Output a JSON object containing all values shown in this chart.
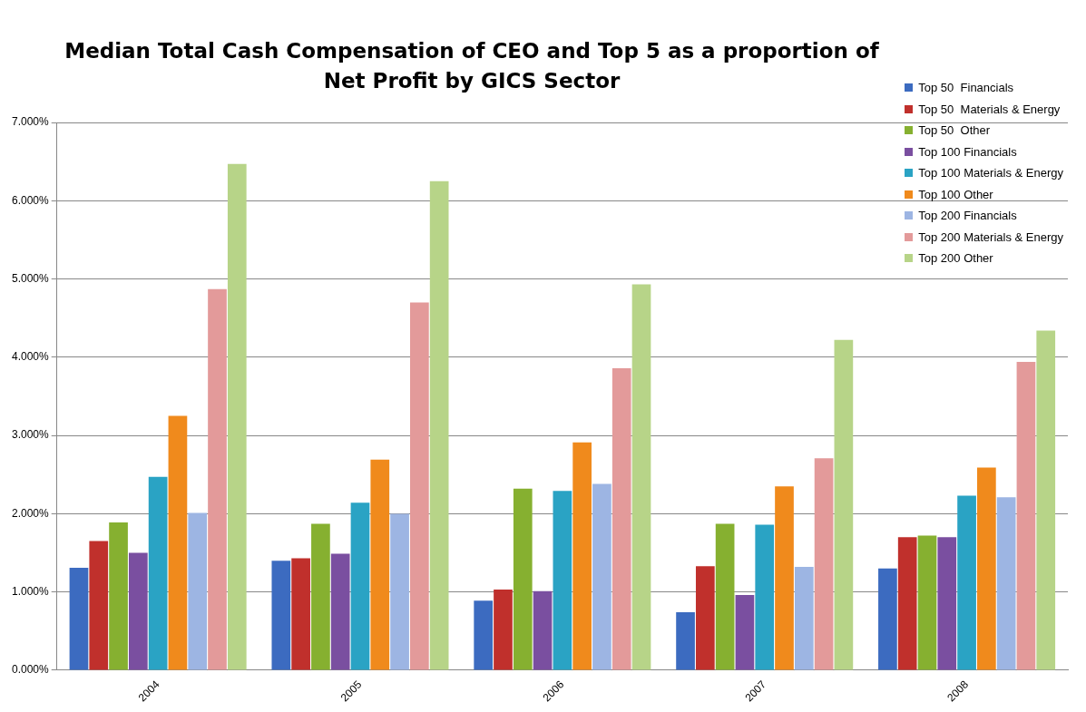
{
  "chart_data": {
    "type": "bar",
    "title": "Median Total Cash Compensation of CEO and Top 5 as a proportion of Net Profit by GICS Sector",
    "categories": [
      "2004",
      "2005",
      "2006",
      "2007",
      "2008"
    ],
    "series": [
      {
        "name": "Top 50  Financials",
        "color": "#3c6bc0",
        "values": [
          1.31,
          1.4,
          0.89,
          0.74,
          1.3
        ]
      },
      {
        "name": "Top 50  Materials & Energy",
        "color": "#c0302c",
        "values": [
          1.65,
          1.43,
          1.03,
          1.33,
          1.7
        ]
      },
      {
        "name": "Top 50  Other",
        "color": "#86b030",
        "values": [
          1.89,
          1.87,
          2.32,
          1.87,
          1.72
        ]
      },
      {
        "name": "Top 100 Financials",
        "color": "#7a4fa0",
        "values": [
          1.5,
          1.49,
          1.01,
          0.96,
          1.7
        ]
      },
      {
        "name": "Top 100 Materials & Energy",
        "color": "#2aa3c4",
        "values": [
          2.47,
          2.14,
          2.29,
          1.86,
          2.23
        ]
      },
      {
        "name": "Top 100 Other",
        "color": "#f08a1c",
        "values": [
          3.25,
          2.69,
          2.91,
          2.35,
          2.59
        ]
      },
      {
        "name": "Top 200 Financials",
        "color": "#9db5e3",
        "values": [
          2.01,
          2.0,
          2.38,
          1.32,
          2.21
        ]
      },
      {
        "name": "Top 200 Materials & Energy",
        "color": "#e39a9a",
        "values": [
          4.87,
          4.7,
          3.86,
          2.71,
          3.94
        ]
      },
      {
        "name": "Top 200 Other",
        "color": "#b7d488",
        "values": [
          6.47,
          6.25,
          4.93,
          4.22,
          4.34
        ]
      }
    ],
    "ylim": [
      0,
      7
    ],
    "yticks": [
      {
        "value": 0,
        "label": "0.000%"
      },
      {
        "value": 1,
        "label": "1.000%"
      },
      {
        "value": 2,
        "label": "2.000%"
      },
      {
        "value": 3,
        "label": "3.000%"
      },
      {
        "value": 4,
        "label": "4.000%"
      },
      {
        "value": 5,
        "label": "5.000%"
      },
      {
        "value": 6,
        "label": "6.000%"
      },
      {
        "value": 7,
        "label": "7.000%"
      }
    ],
    "grid": "y",
    "legend": "top right"
  }
}
